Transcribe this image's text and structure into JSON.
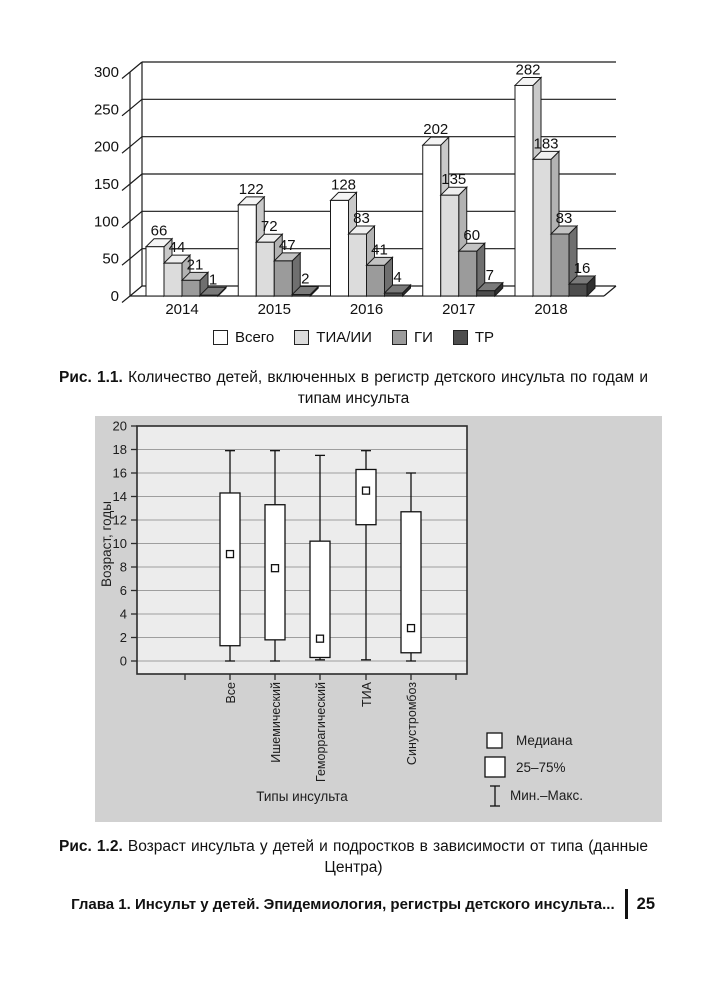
{
  "page": {
    "footer": {
      "chapter": "Глава 1. Инсульт у детей. Эпидемиология, регистры детского инсульта...",
      "page_number": "25"
    }
  },
  "figure_1_1": {
    "label": "Рис. 1.1.",
    "caption": "Количество детей, включенных в регистр детского инсульта по годам и типам инсульта"
  },
  "figure_1_2": {
    "label": "Рис. 1.2.",
    "caption": "Возраст инсульта у детей и подростков в зависимости от типа (данные Центра)"
  },
  "chart_data": [
    {
      "type": "bar",
      "style": "3d",
      "title": "",
      "xlabel": "",
      "ylabel": "",
      "categories": [
        "2014",
        "2015",
        "2016",
        "2017",
        "2018"
      ],
      "series": [
        {
          "name": "Всего",
          "color": "#ffffff",
          "top_color": "#f4f4f4",
          "side_color": "#c9c9c9",
          "values": [
            66,
            122,
            128,
            202,
            282
          ]
        },
        {
          "name": "ТИА/ИИ",
          "color": "#dcdcdc",
          "top_color": "#efefef",
          "side_color": "#b2b2b2",
          "values": [
            44,
            72,
            83,
            135,
            183
          ]
        },
        {
          "name": "ГИ",
          "color": "#9b9b9b",
          "top_color": "#c3c3c3",
          "side_color": "#6f6f6f",
          "values": [
            21,
            47,
            41,
            60,
            83
          ]
        },
        {
          "name": "ТР",
          "color": "#4d4d4d",
          "top_color": "#7a7a7a",
          "side_color": "#303030",
          "values": [
            1,
            2,
            4,
            7,
            16
          ]
        }
      ],
      "ylim": [
        0,
        300
      ],
      "ytick_step": 50,
      "grid": true,
      "bar_labels": true,
      "legend_position": "bottom"
    },
    {
      "type": "box",
      "title": "",
      "xlabel": "Типы инсульта",
      "ylabel": "Возраст, годы",
      "ylim": [
        0,
        20
      ],
      "ytick_step": 2,
      "grid": true,
      "categories": [
        "Все",
        "Ишемический",
        "Геморрагический",
        "ТИА",
        "Синустромбоз"
      ],
      "boxes": [
        {
          "category": "Все",
          "min": 0,
          "q1": 1.3,
          "median": 9.1,
          "q3": 14.3,
          "max": 17.9
        },
        {
          "category": "Ишемический",
          "min": 0,
          "q1": 1.8,
          "median": 7.9,
          "q3": 13.3,
          "max": 17.9
        },
        {
          "category": "Геморрагический",
          "min": 0.1,
          "q1": 0.3,
          "median": 1.9,
          "q3": 10.2,
          "max": 17.5
        },
        {
          "category": "ТИА",
          "min": 0.1,
          "q1": 11.6,
          "median": 14.5,
          "q3": 16.3,
          "max": 17.9
        },
        {
          "category": "Синустромбоз",
          "min": 0,
          "q1": 0.7,
          "median": 2.8,
          "q3": 12.7,
          "max": 16
        }
      ],
      "legend": [
        {
          "symbol": "median-square",
          "label": "Медиана"
        },
        {
          "symbol": "box",
          "label": "25–75%"
        },
        {
          "symbol": "whisker",
          "label": "Мин.–Макс."
        }
      ],
      "legend_position": "bottom-right",
      "panel_color": "#d1d1d1",
      "plot_color": "#ececec",
      "grid_color": "#9e9e9e"
    }
  ]
}
